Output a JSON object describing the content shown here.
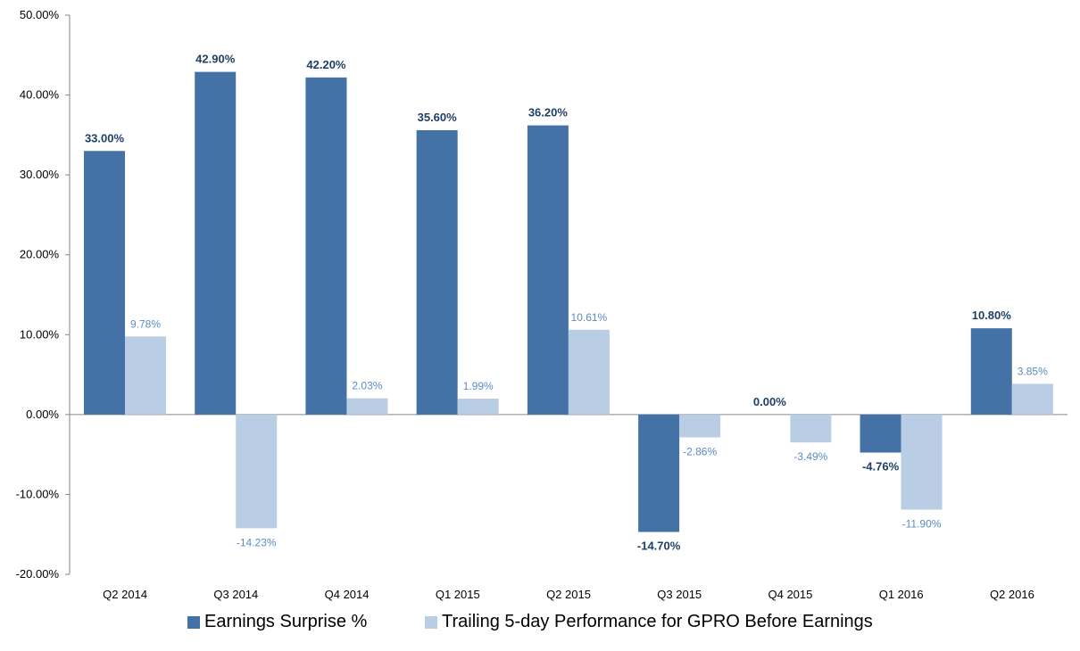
{
  "chart_data": {
    "type": "bar",
    "title": "",
    "xlabel": "",
    "ylabel": "",
    "categories": [
      "Q2 2014",
      "Q3 2014",
      "Q4 2014",
      "Q1 2015",
      "Q2 2015",
      "Q3 2015",
      "Q4 2015",
      "Q1 2016",
      "Q2 2016"
    ],
    "series": [
      {
        "name": "Earnings Surprise %",
        "color": "#4472a6",
        "label_color": "#1f3f66",
        "values": [
          33.0,
          42.9,
          42.2,
          35.6,
          36.2,
          -14.7,
          0.0,
          -4.76,
          10.8
        ],
        "labels": [
          "33.00%",
          "42.90%",
          "42.20%",
          "35.60%",
          "36.20%",
          "-14.70%",
          "0.00%",
          "-4.76%",
          "10.80%"
        ]
      },
      {
        "name": "Trailing 5-day Performance for GPRO Before Earnings",
        "color": "#b9cde5",
        "label_color": "#5b8bc5",
        "values": [
          9.78,
          -14.23,
          2.03,
          1.99,
          10.61,
          -2.86,
          -3.49,
          -11.9,
          3.85
        ],
        "labels": [
          "9.78%",
          "-14.23%",
          "2.03%",
          "1.99%",
          "10.61%",
          "-2.86%",
          "-3.49%",
          "-11.90%",
          "3.85%"
        ]
      }
    ],
    "ylim": [
      -20,
      50
    ],
    "yticks": [
      -20,
      -10,
      0,
      10,
      20,
      30,
      40,
      50
    ],
    "ytick_labels": [
      "-20.00%",
      "-10.00%",
      "0.00%",
      "10.00%",
      "20.00%",
      "30.00%",
      "40.00%",
      "50.00%"
    ],
    "grid": false,
    "legend_position": "bottom-center"
  }
}
